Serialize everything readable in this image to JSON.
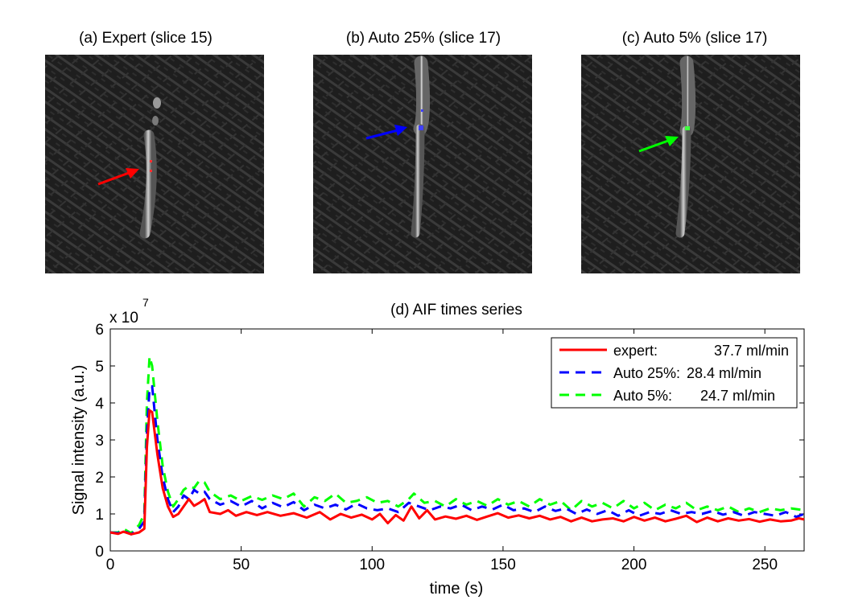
{
  "figure": {
    "panel_a_title": "(a) Expert (slice 15)",
    "panel_b_title": "(b) Auto 25% (slice 17)",
    "panel_c_title": "(c) Auto 5% (slice 17)"
  },
  "colors": {
    "expert": "#ff0000",
    "auto25": "#0000ff",
    "auto5": "#00ff00"
  },
  "chart_data": {
    "type": "line",
    "title": "(d) AIF times series",
    "xlabel": "time (s)",
    "ylabel": "Signal intensity (a.u.)",
    "y_exponent_base": "x 10",
    "y_exponent_power": "7",
    "xlim": [
      0,
      265
    ],
    "ylim": [
      0,
      6
    ],
    "x_ticks": [
      0,
      50,
      100,
      150,
      200,
      250
    ],
    "y_ticks": [
      0,
      1,
      2,
      3,
      4,
      5,
      6
    ],
    "legend_position": "top-right",
    "series": [
      {
        "key": "expert",
        "legend_name": "expert:",
        "legend_value": "37.7 ml/min",
        "style": "solid",
        "points": [
          [
            0,
            0.5
          ],
          [
            3,
            0.46
          ],
          [
            5,
            0.52
          ],
          [
            8,
            0.45
          ],
          [
            11,
            0.5
          ],
          [
            13,
            0.6
          ],
          [
            14,
            2.8
          ],
          [
            15,
            3.8
          ],
          [
            16,
            3.75
          ],
          [
            18,
            2.6
          ],
          [
            20,
            1.7
          ],
          [
            22,
            1.2
          ],
          [
            24,
            0.92
          ],
          [
            26,
            1.0
          ],
          [
            28,
            1.2
          ],
          [
            30,
            1.4
          ],
          [
            32,
            1.22
          ],
          [
            34,
            1.3
          ],
          [
            36,
            1.4
          ],
          [
            38,
            1.05
          ],
          [
            42,
            1.0
          ],
          [
            45,
            1.1
          ],
          [
            48,
            0.95
          ],
          [
            52,
            1.05
          ],
          [
            56,
            0.97
          ],
          [
            60,
            1.05
          ],
          [
            65,
            0.95
          ],
          [
            70,
            1.02
          ],
          [
            75,
            0.9
          ],
          [
            80,
            1.05
          ],
          [
            84,
            0.85
          ],
          [
            88,
            1.0
          ],
          [
            92,
            0.9
          ],
          [
            96,
            0.98
          ],
          [
            100,
            0.85
          ],
          [
            103,
            1.0
          ],
          [
            106,
            0.75
          ],
          [
            109,
            0.97
          ],
          [
            112,
            0.82
          ],
          [
            115,
            1.2
          ],
          [
            118,
            0.88
          ],
          [
            121,
            1.1
          ],
          [
            124,
            0.85
          ],
          [
            128,
            0.93
          ],
          [
            132,
            0.87
          ],
          [
            136,
            0.95
          ],
          [
            140,
            0.84
          ],
          [
            144,
            0.93
          ],
          [
            148,
            1.02
          ],
          [
            152,
            0.9
          ],
          [
            156,
            0.96
          ],
          [
            160,
            0.88
          ],
          [
            164,
            0.95
          ],
          [
            168,
            0.85
          ],
          [
            172,
            0.92
          ],
          [
            176,
            0.8
          ],
          [
            180,
            0.9
          ],
          [
            184,
            0.8
          ],
          [
            188,
            0.85
          ],
          [
            192,
            0.88
          ],
          [
            196,
            0.8
          ],
          [
            200,
            0.92
          ],
          [
            204,
            0.82
          ],
          [
            208,
            0.9
          ],
          [
            212,
            0.8
          ],
          [
            216,
            0.87
          ],
          [
            220,
            0.95
          ],
          [
            224,
            0.78
          ],
          [
            228,
            0.9
          ],
          [
            232,
            0.8
          ],
          [
            236,
            0.88
          ],
          [
            240,
            0.82
          ],
          [
            244,
            0.86
          ],
          [
            248,
            0.79
          ],
          [
            252,
            0.85
          ],
          [
            256,
            0.8
          ],
          [
            260,
            0.82
          ],
          [
            263,
            0.88
          ],
          [
            265,
            0.85
          ]
        ]
      },
      {
        "key": "auto25",
        "legend_name": "Auto 25%:",
        "legend_value": "28.4 ml/min",
        "style": "dashed",
        "points": [
          [
            0,
            0.5
          ],
          [
            3,
            0.48
          ],
          [
            5,
            0.55
          ],
          [
            8,
            0.45
          ],
          [
            11,
            0.6
          ],
          [
            13,
            0.8
          ],
          [
            14,
            3.2
          ],
          [
            15,
            4.4
          ],
          [
            16,
            4.45
          ],
          [
            18,
            3.0
          ],
          [
            20,
            2.0
          ],
          [
            22,
            1.4
          ],
          [
            24,
            1.05
          ],
          [
            26,
            1.2
          ],
          [
            28,
            1.5
          ],
          [
            30,
            1.4
          ],
          [
            32,
            1.65
          ],
          [
            34,
            1.55
          ],
          [
            36,
            1.6
          ],
          [
            38,
            1.4
          ],
          [
            42,
            1.25
          ],
          [
            46,
            1.35
          ],
          [
            50,
            1.2
          ],
          [
            54,
            1.35
          ],
          [
            58,
            1.15
          ],
          [
            62,
            1.3
          ],
          [
            66,
            1.18
          ],
          [
            70,
            1.32
          ],
          [
            74,
            1.1
          ],
          [
            78,
            1.25
          ],
          [
            82,
            1.15
          ],
          [
            86,
            1.25
          ],
          [
            90,
            1.12
          ],
          [
            94,
            1.28
          ],
          [
            98,
            1.15
          ],
          [
            102,
            1.1
          ],
          [
            106,
            1.15
          ],
          [
            110,
            1.05
          ],
          [
            114,
            1.3
          ],
          [
            118,
            1.2
          ],
          [
            122,
            1.1
          ],
          [
            126,
            1.2
          ],
          [
            130,
            1.15
          ],
          [
            134,
            1.25
          ],
          [
            138,
            1.1
          ],
          [
            142,
            1.2
          ],
          [
            146,
            1.12
          ],
          [
            150,
            1.25
          ],
          [
            154,
            1.1
          ],
          [
            158,
            1.15
          ],
          [
            162,
            1.05
          ],
          [
            166,
            1.2
          ],
          [
            170,
            1.08
          ],
          [
            174,
            1.15
          ],
          [
            178,
            1.0
          ],
          [
            182,
            1.12
          ],
          [
            186,
            1.0
          ],
          [
            190,
            1.1
          ],
          [
            194,
            0.95
          ],
          [
            198,
            1.1
          ],
          [
            202,
            0.95
          ],
          [
            206,
            1.05
          ],
          [
            210,
            1.0
          ],
          [
            214,
            1.1
          ],
          [
            218,
            1.0
          ],
          [
            222,
            1.05
          ],
          [
            226,
            1.0
          ],
          [
            230,
            1.08
          ],
          [
            234,
            0.98
          ],
          [
            238,
            1.05
          ],
          [
            242,
            0.95
          ],
          [
            246,
            1.05
          ],
          [
            250,
            1.0
          ],
          [
            254,
            0.95
          ],
          [
            258,
            1.05
          ],
          [
            262,
            0.92
          ],
          [
            265,
            1.0
          ]
        ]
      },
      {
        "key": "auto5",
        "legend_name": "Auto 5%:",
        "legend_value": "24.7 ml/min",
        "style": "dashed",
        "points": [
          [
            0,
            0.5
          ],
          [
            3,
            0.5
          ],
          [
            5,
            0.6
          ],
          [
            8,
            0.48
          ],
          [
            11,
            0.7
          ],
          [
            13,
            1.0
          ],
          [
            14,
            4.0
          ],
          [
            15,
            5.25
          ],
          [
            16,
            5.0
          ],
          [
            18,
            3.5
          ],
          [
            20,
            2.3
          ],
          [
            22,
            1.6
          ],
          [
            24,
            1.2
          ],
          [
            26,
            1.4
          ],
          [
            28,
            1.65
          ],
          [
            30,
            1.75
          ],
          [
            32,
            1.7
          ],
          [
            34,
            1.9
          ],
          [
            36,
            1.85
          ],
          [
            38,
            1.6
          ],
          [
            42,
            1.4
          ],
          [
            46,
            1.5
          ],
          [
            50,
            1.35
          ],
          [
            54,
            1.48
          ],
          [
            58,
            1.38
          ],
          [
            62,
            1.5
          ],
          [
            66,
            1.4
          ],
          [
            70,
            1.55
          ],
          [
            74,
            1.2
          ],
          [
            78,
            1.45
          ],
          [
            82,
            1.35
          ],
          [
            86,
            1.55
          ],
          [
            90,
            1.3
          ],
          [
            94,
            1.35
          ],
          [
            98,
            1.45
          ],
          [
            102,
            1.3
          ],
          [
            106,
            1.35
          ],
          [
            110,
            1.2
          ],
          [
            114,
            1.4
          ],
          [
            116,
            1.55
          ],
          [
            120,
            1.3
          ],
          [
            124,
            1.35
          ],
          [
            128,
            1.2
          ],
          [
            132,
            1.4
          ],
          [
            136,
            1.25
          ],
          [
            140,
            1.35
          ],
          [
            144,
            1.22
          ],
          [
            148,
            1.4
          ],
          [
            152,
            1.25
          ],
          [
            156,
            1.35
          ],
          [
            160,
            1.2
          ],
          [
            164,
            1.4
          ],
          [
            168,
            1.25
          ],
          [
            172,
            1.35
          ],
          [
            176,
            1.1
          ],
          [
            180,
            1.35
          ],
          [
            184,
            1.2
          ],
          [
            188,
            1.3
          ],
          [
            192,
            1.15
          ],
          [
            196,
            1.35
          ],
          [
            200,
            1.15
          ],
          [
            204,
            1.3
          ],
          [
            208,
            1.1
          ],
          [
            212,
            1.25
          ],
          [
            216,
            1.15
          ],
          [
            220,
            1.3
          ],
          [
            224,
            1.1
          ],
          [
            228,
            1.2
          ],
          [
            232,
            1.1
          ],
          [
            236,
            1.2
          ],
          [
            240,
            1.05
          ],
          [
            244,
            1.15
          ],
          [
            248,
            1.05
          ],
          [
            252,
            1.15
          ],
          [
            256,
            1.1
          ],
          [
            260,
            1.15
          ],
          [
            265,
            1.1
          ]
        ]
      }
    ]
  }
}
